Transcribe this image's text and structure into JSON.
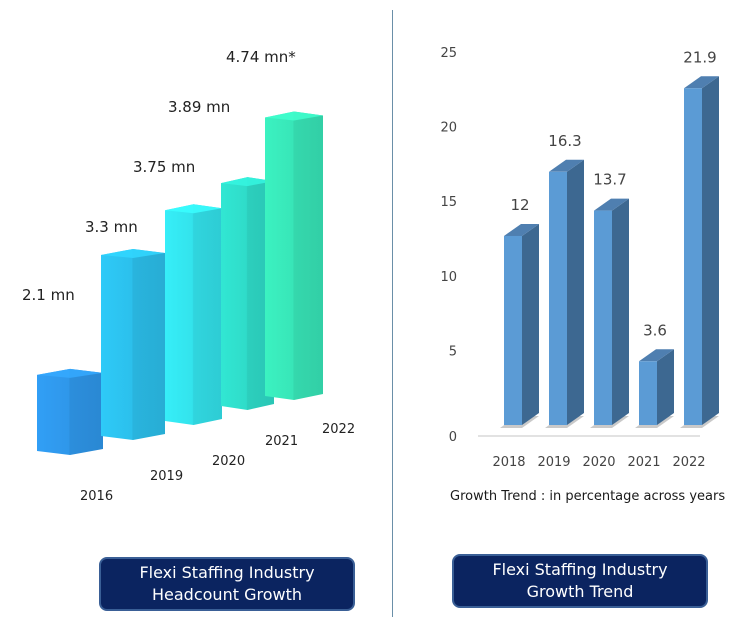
{
  "chart_data": [
    {
      "type": "bar",
      "title": "Flexi Staffing Industry Headcount Growth",
      "categories": [
        "2016",
        "2019",
        "2020",
        "2021",
        "2022"
      ],
      "values": [
        2.1,
        3.3,
        3.75,
        3.89,
        4.74
      ],
      "data_labels": [
        "2.1 mn",
        "3.3 mn",
        "3.75 mn",
        "3.89 mn",
        "4.74 mn*"
      ],
      "unit": "million",
      "style": "3d",
      "colors": [
        "#2f97ea",
        "#2cc0ec",
        "#33e3ec",
        "#2fdcc9",
        "#38e6b8"
      ],
      "xlabel": "",
      "ylabel": "",
      "grid": false
    },
    {
      "type": "bar",
      "title": "Flexi Staffing Industry Growth Trend",
      "subtitle": "Growth Trend : in percentage across years",
      "categories": [
        "2018",
        "2019",
        "2020",
        "2021",
        "2022"
      ],
      "values": [
        12,
        16.3,
        13.7,
        3.6,
        21.9
      ],
      "data_labels": [
        "12",
        "16.3",
        "13.7",
        "3.6",
        "21.9"
      ],
      "yticks": [
        "0",
        "5",
        "10",
        "15",
        "20",
        "25"
      ],
      "ylim": [
        0,
        25
      ],
      "style": "3d",
      "colors": {
        "front": "#5b9bd5",
        "side": "#3d6891",
        "top": "#4f7fb0"
      },
      "xlabel": "",
      "ylabel": "",
      "grid": false
    }
  ],
  "captions": {
    "left": {
      "line1": "Flexi Staffing Industry",
      "line2": "Headcount Growth"
    },
    "right": {
      "line1": "Flexi Staffing Industry",
      "line2": "Growth Trend"
    }
  }
}
